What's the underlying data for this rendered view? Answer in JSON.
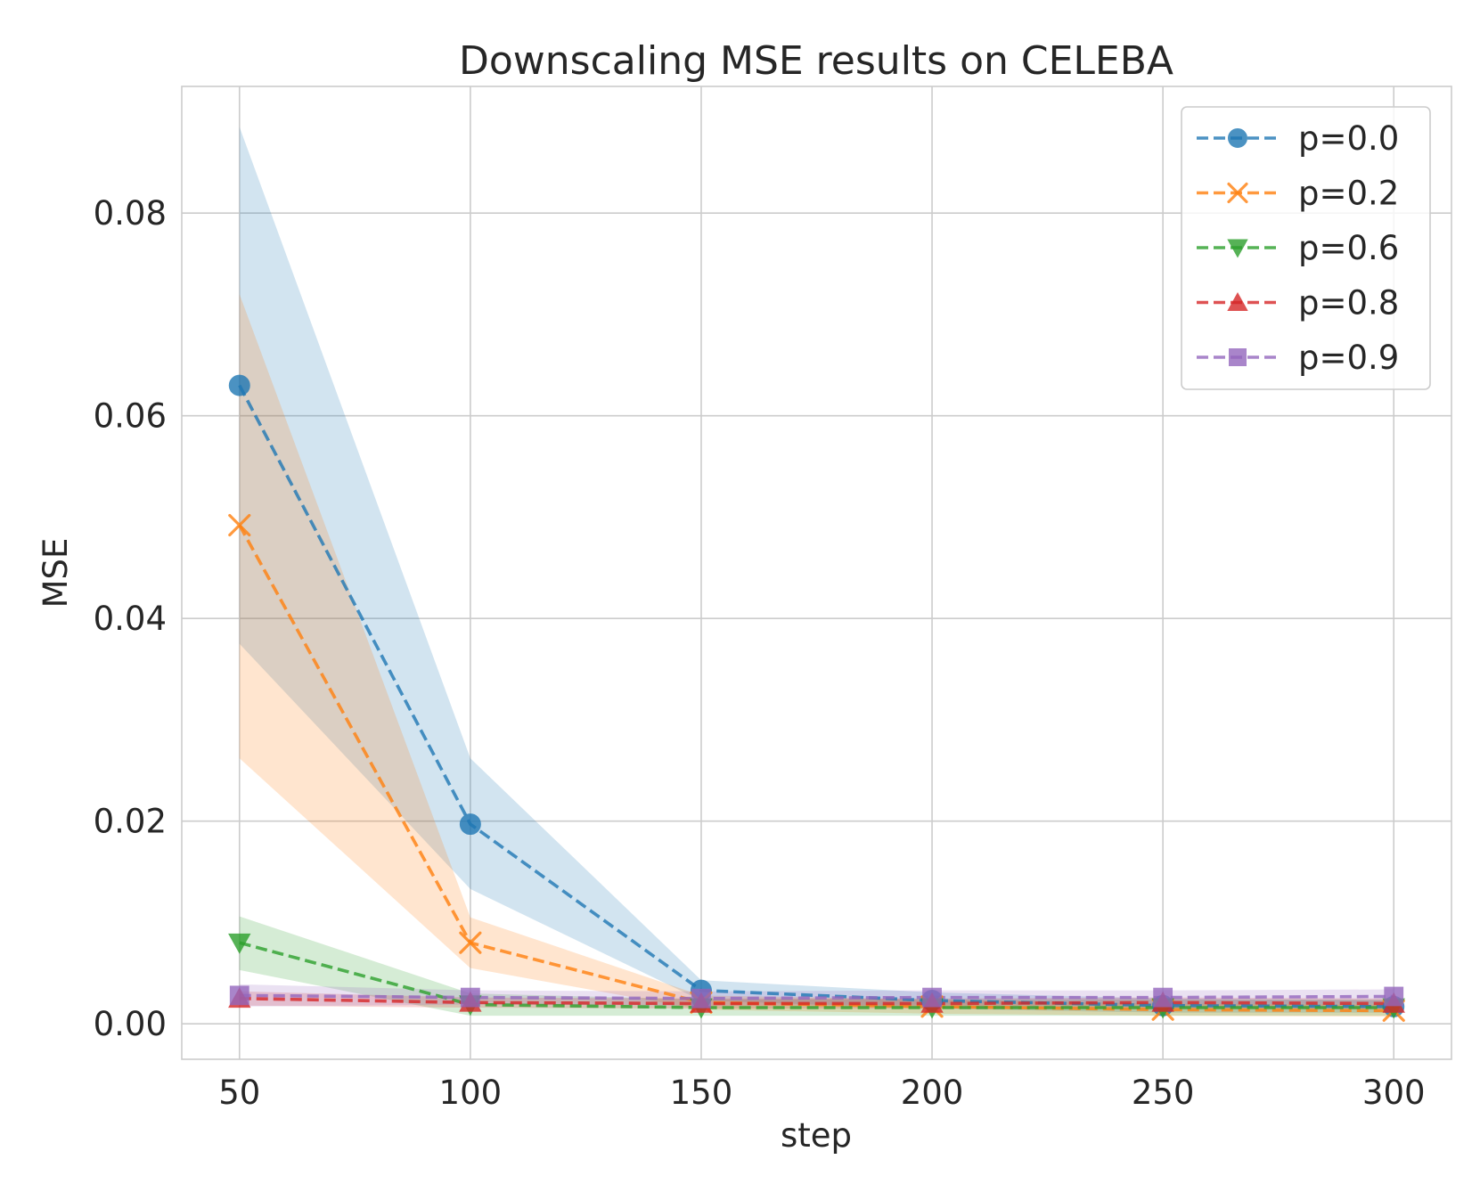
{
  "chart_data": {
    "type": "line",
    "title": "Downscaling MSE results on CELEBA",
    "xlabel": "step",
    "ylabel": "MSE",
    "x": [
      50,
      100,
      150,
      200,
      250,
      300
    ],
    "xlim": [
      37.5,
      312.5
    ],
    "ylim": [
      -0.0035,
      0.0925
    ],
    "xticks": [
      50,
      100,
      150,
      200,
      250,
      300
    ],
    "xtick_labels": [
      "50",
      "100",
      "150",
      "200",
      "250",
      "300"
    ],
    "yticks": [
      0.0,
      0.02,
      0.04,
      0.06,
      0.08
    ],
    "ytick_labels": [
      "0.00",
      "0.02",
      "0.04",
      "0.06",
      "0.08"
    ],
    "grid": true,
    "legend_position": "top-right",
    "series": [
      {
        "name": "p=0.0",
        "label": "p=0.0",
        "color": "#1f77b4",
        "marker": "circle",
        "values": [
          0.063,
          0.0197,
          0.0033,
          0.0023,
          0.0018,
          0.0017
        ],
        "lower": [
          0.0375,
          0.0133,
          0.0023,
          0.0015,
          0.0011,
          0.0011
        ],
        "upper": [
          0.0885,
          0.0262,
          0.0043,
          0.0031,
          0.0025,
          0.0023
        ]
      },
      {
        "name": "p=0.2",
        "label": "p=0.2",
        "color": "#ff7f0e",
        "marker": "x",
        "values": [
          0.0492,
          0.008,
          0.0021,
          0.0017,
          0.0014,
          0.0013
        ],
        "lower": [
          0.0262,
          0.0055,
          0.0014,
          0.001,
          0.0008,
          0.0007
        ],
        "upper": [
          0.072,
          0.0105,
          0.0028,
          0.0024,
          0.002,
          0.0019
        ]
      },
      {
        "name": "p=0.6",
        "label": "p=0.6",
        "color": "#2ca02c",
        "marker": "triangle-down",
        "values": [
          0.008,
          0.0019,
          0.0016,
          0.0016,
          0.0016,
          0.0016
        ],
        "lower": [
          0.0053,
          0.0008,
          0.0008,
          0.0008,
          0.0008,
          0.0008
        ],
        "upper": [
          0.0106,
          0.003,
          0.0024,
          0.0024,
          0.0024,
          0.0024
        ]
      },
      {
        "name": "p=0.8",
        "label": "p=0.8",
        "color": "#d62728",
        "marker": "triangle-up",
        "values": [
          0.0025,
          0.0021,
          0.002,
          0.002,
          0.0021,
          0.002
        ],
        "lower": [
          0.0018,
          0.0016,
          0.0015,
          0.0015,
          0.0015,
          0.0015
        ],
        "upper": [
          0.0032,
          0.0026,
          0.0025,
          0.0025,
          0.0026,
          0.0025
        ]
      },
      {
        "name": "p=0.9",
        "label": "p=0.9",
        "color": "#9467bd",
        "marker": "square",
        "values": [
          0.0028,
          0.0026,
          0.0025,
          0.0026,
          0.0026,
          0.0027
        ],
        "lower": [
          0.0017,
          0.0019,
          0.0018,
          0.0019,
          0.0019,
          0.002
        ],
        "upper": [
          0.0039,
          0.0033,
          0.0032,
          0.0033,
          0.0033,
          0.0034
        ]
      }
    ]
  }
}
